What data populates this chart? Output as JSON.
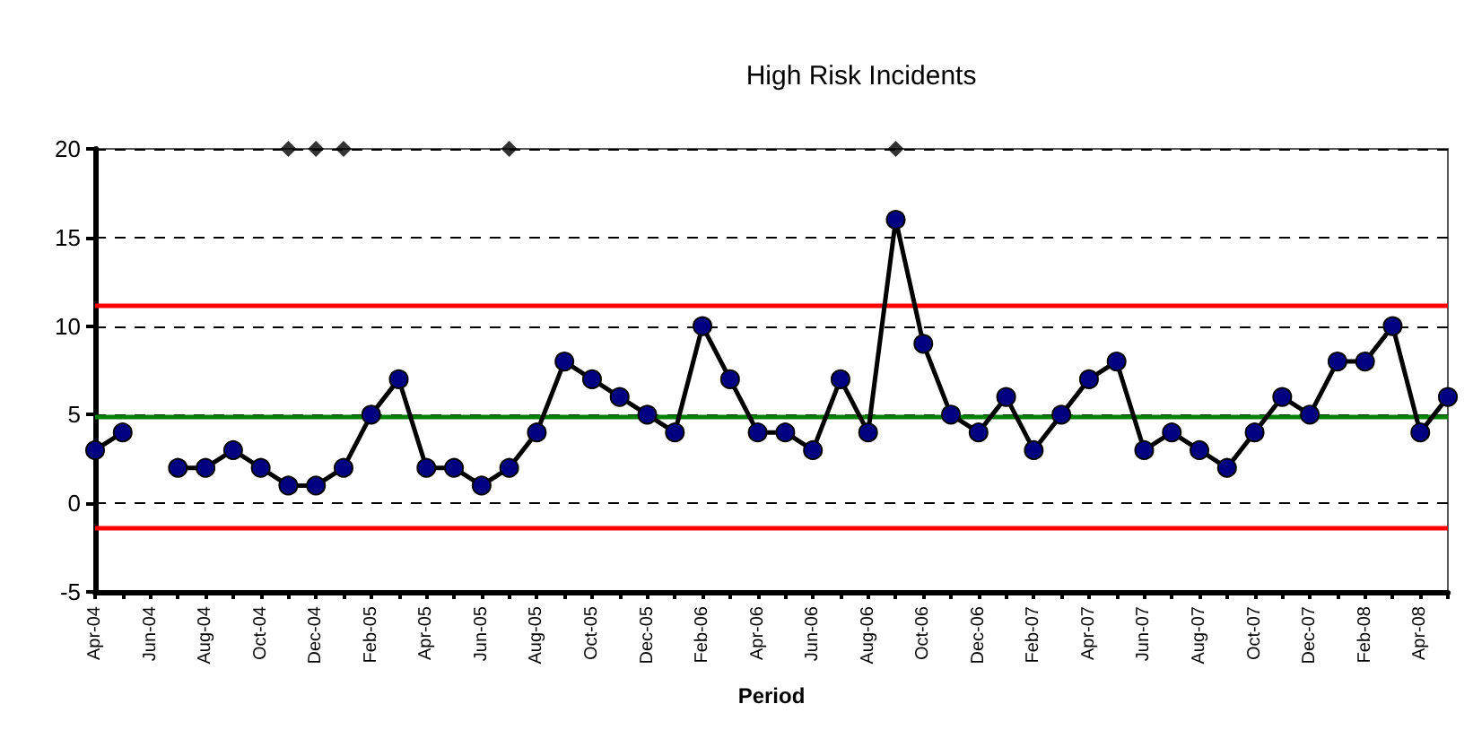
{
  "chart_data": {
    "type": "line",
    "title": "High Risk Incidents",
    "xlabel": "Period",
    "categories": [
      "Apr-04",
      null,
      "Jun-04",
      null,
      "Aug-04",
      null,
      "Oct-04",
      null,
      "Dec-04",
      null,
      "Feb-05",
      null,
      "Apr-05",
      null,
      "Jun-05",
      null,
      "Aug-05",
      null,
      "Oct-05",
      null,
      "Dec-05",
      null,
      "Feb-06",
      null,
      "Apr-06",
      null,
      "Jun-06",
      null,
      "Aug-06",
      null,
      "Oct-06",
      null,
      "Dec-06",
      null,
      "Feb-07",
      null,
      "Apr-07",
      null,
      "Jun-07",
      null,
      "Aug-07",
      null,
      "Oct-07",
      null,
      "Dec-07",
      null,
      "Feb-08",
      null,
      "Apr-08",
      null
    ],
    "series": [
      {
        "color": "#000080",
        "marker": "circle",
        "line_style": "solid",
        "values": [
          3,
          4,
          null,
          2,
          2,
          3,
          2,
          1,
          1,
          2,
          5,
          7,
          2,
          2,
          1,
          2,
          4,
          8,
          7,
          6,
          5,
          4,
          10,
          7,
          4,
          4,
          3,
          7,
          4,
          16,
          9,
          5,
          4,
          6,
          3,
          5,
          7,
          8,
          3,
          4,
          3,
          2,
          4,
          6,
          5,
          8,
          8,
          10,
          4,
          6
        ]
      },
      {
        "type": "scatter",
        "color": "#000000",
        "marker": "diamond",
        "values": [
          null,
          null,
          null,
          null,
          null,
          null,
          null,
          20,
          20,
          20,
          null,
          null,
          null,
          null,
          null,
          20,
          null,
          null,
          null,
          null,
          null,
          null,
          null,
          null,
          null,
          null,
          null,
          null,
          null,
          20,
          null,
          null,
          null,
          null,
          null,
          null,
          null,
          null,
          null,
          null,
          null,
          null,
          null,
          null,
          null,
          null,
          null,
          null,
          null,
          null
        ]
      }
    ],
    "ylim": [
      -5,
      20
    ],
    "yticks": [
      -5,
      0,
      5,
      10,
      15,
      20
    ],
    "grid": "y",
    "ref_lines": [
      {
        "axis": "y",
        "value": 11.2,
        "color": "#ff0000",
        "line_style": "solid"
      },
      {
        "axis": "y",
        "value": 4.9,
        "color": "#008000",
        "line_style": "solid"
      },
      {
        "axis": "y",
        "value": -1.4,
        "color": "#ff0000",
        "line_style": "solid"
      }
    ]
  }
}
